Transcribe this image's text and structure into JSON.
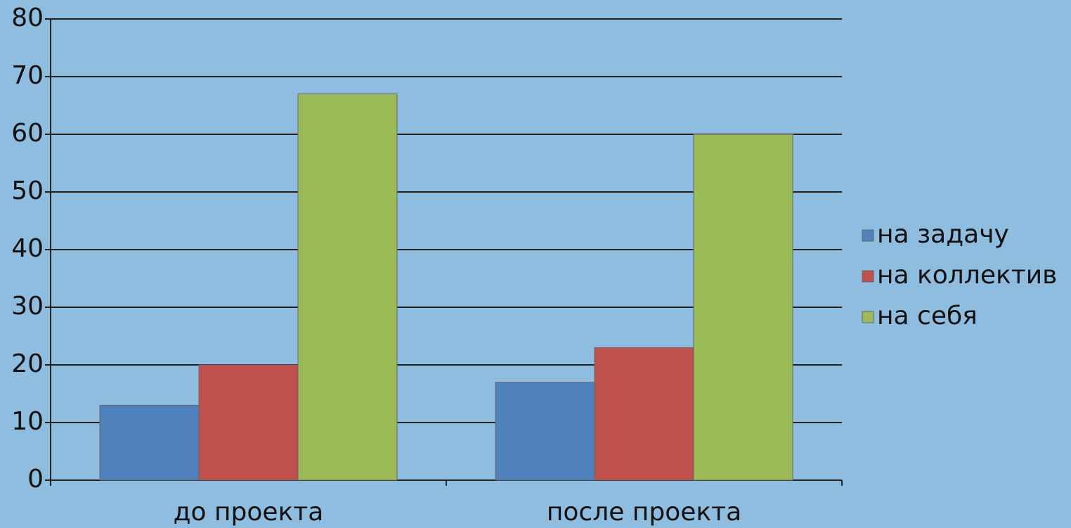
{
  "chart_data": {
    "type": "bar",
    "categories": [
      "до проекта",
      "после проекта"
    ],
    "series": [
      {
        "name": "на задачу",
        "color": "#4f81bd",
        "values": [
          13,
          17
        ]
      },
      {
        "name": "на коллектив",
        "color": "#c0504d",
        "values": [
          20,
          23
        ]
      },
      {
        "name": "на себя",
        "color": "#9bbb59",
        "values": [
          67,
          60
        ]
      }
    ],
    "ylim": [
      0,
      80
    ],
    "yticks": [
      0,
      10,
      20,
      30,
      40,
      50,
      60,
      70,
      80
    ],
    "grid": true,
    "legend": "right"
  }
}
